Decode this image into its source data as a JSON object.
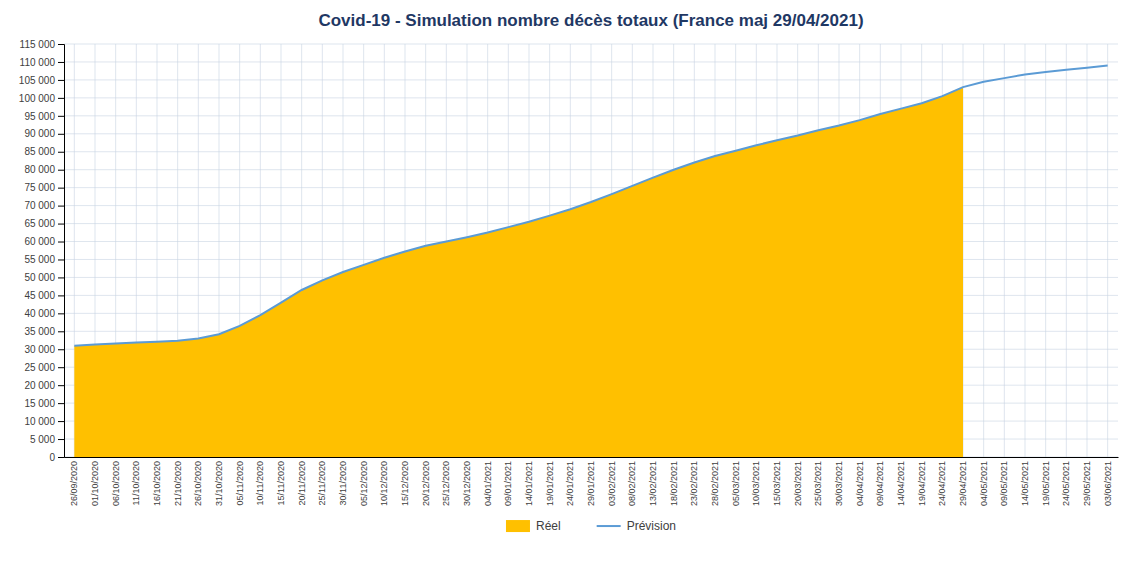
{
  "chart_data": {
    "type": "line",
    "title": "Covid-19 - Simulation nombre décès totaux (France maj 29/04/2021)",
    "categories": [
      "26/09/2020",
      "01/10/2020",
      "06/10/2020",
      "11/10/2020",
      "16/10/2020",
      "21/10/2020",
      "26/10/2020",
      "31/10/2020",
      "05/11/2020",
      "10/11/2020",
      "15/11/2020",
      "20/11/2020",
      "25/11/2020",
      "30/11/2020",
      "05/12/2020",
      "10/12/2020",
      "15/12/2020",
      "20/12/2020",
      "25/12/2020",
      "30/12/2020",
      "04/01/2021",
      "09/01/2021",
      "14/01/2021",
      "19/01/2021",
      "24/01/2021",
      "29/01/2021",
      "03/02/2021",
      "08/02/2021",
      "13/02/2021",
      "18/02/2021",
      "23/02/2021",
      "28/02/2021",
      "05/03/2021",
      "10/03/2021",
      "15/03/2021",
      "20/03/2021",
      "25/03/2021",
      "30/03/2021",
      "04/04/2021",
      "09/04/2021",
      "14/04/2021",
      "19/04/2021",
      "24/04/2021",
      "29/04/2021",
      "04/05/2021",
      "09/05/2021",
      "14/05/2021",
      "19/05/2021",
      "24/05/2021",
      "29/05/2021",
      "03/06/2021"
    ],
    "series": [
      {
        "name": "Réel",
        "type": "area",
        "color": "#FFC000",
        "values": [
          31000,
          31300,
          31600,
          31900,
          32100,
          32400,
          33000,
          34200,
          36500,
          39500,
          43000,
          46500,
          49200,
          51500,
          53500,
          55500,
          57200,
          58800,
          60000,
          61200,
          62500,
          64000,
          65500,
          67200,
          69000,
          71000,
          73200,
          75500,
          77800,
          80000,
          82000,
          83800,
          85300,
          86800,
          88200,
          89500,
          91000,
          92300,
          93800,
          95500,
          97000,
          98500,
          100500,
          103000,
          null,
          null,
          null,
          null,
          null,
          null,
          null
        ]
      },
      {
        "name": "Prévision",
        "type": "line",
        "color": "#5B9BD5",
        "values": [
          31000,
          31300,
          31600,
          31900,
          32100,
          32400,
          33000,
          34200,
          36500,
          39500,
          43000,
          46500,
          49200,
          51500,
          53500,
          55500,
          57200,
          58800,
          60000,
          61200,
          62500,
          64000,
          65500,
          67200,
          69000,
          71000,
          73200,
          75500,
          77800,
          80000,
          82000,
          83800,
          85300,
          86800,
          88200,
          89500,
          91000,
          92300,
          93800,
          95500,
          97000,
          98500,
          100500,
          103000,
          104500,
          105500,
          106500,
          107200,
          107800,
          108400,
          109000
        ]
      }
    ],
    "ylim": [
      0,
      115000
    ],
    "yticks": [
      0,
      {
        "value": 5000,
        "label": "5 000"
      },
      {
        "value": 10000,
        "label": "10 000"
      },
      {
        "value": 15000,
        "label": "15 000"
      },
      {
        "value": 20000,
        "label": "20 000"
      },
      {
        "value": 25000,
        "label": "25 000"
      },
      {
        "value": 30000,
        "label": "30 000"
      },
      {
        "value": 35000,
        "label": "35 000"
      },
      {
        "value": 40000,
        "label": "40 000"
      },
      {
        "value": 45000,
        "label": "45 000"
      },
      {
        "value": 50000,
        "label": "50 000"
      },
      {
        "value": 55000,
        "label": "55 000"
      },
      {
        "value": 60000,
        "label": "60 000"
      },
      {
        "value": 65000,
        "label": "65 000"
      },
      {
        "value": 70000,
        "label": "70 000"
      },
      {
        "value": 75000,
        "label": "75 000"
      },
      {
        "value": 80000,
        "label": "80 000"
      },
      {
        "value": 85000,
        "label": "85 000"
      },
      {
        "value": 90000,
        "label": "90 000"
      },
      {
        "value": 95000,
        "label": "95 000"
      },
      {
        "value": 100000,
        "label": "100 000"
      },
      {
        "value": 105000,
        "label": "105 000"
      },
      {
        "value": 110000,
        "label": "110 000"
      },
      {
        "value": 115000,
        "label": "115 000"
      }
    ],
    "grid": true,
    "legend": "bottom"
  }
}
